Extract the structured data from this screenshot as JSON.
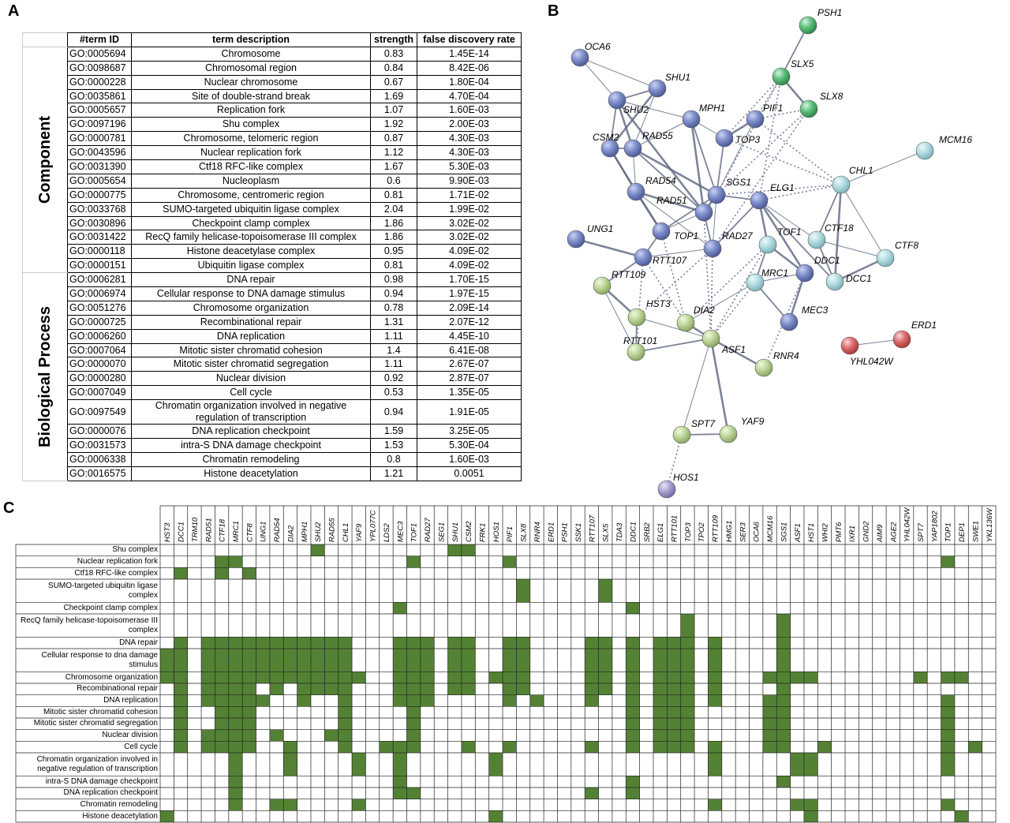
{
  "panel_a": {
    "label": "A",
    "columns": [
      "#term ID",
      "term description",
      "strength",
      "false discovery rate"
    ],
    "groups": [
      {
        "name": "Component",
        "rows": [
          [
            "GO:0005694",
            "Chromosome",
            "0.83",
            "1.45E-14"
          ],
          [
            "GO:0098687",
            "Chromosomal region",
            "0.84",
            "8.42E-06"
          ],
          [
            "GO:0000228",
            "Nuclear chromosome",
            "0.67",
            "1.80E-04"
          ],
          [
            "GO:0035861",
            "Site of double-strand break",
            "1.69",
            "4.70E-04"
          ],
          [
            "GO:0005657",
            "Replication fork",
            "1.07",
            "1.60E-03"
          ],
          [
            "GO:0097196",
            "Shu complex",
            "1.92",
            "2.00E-03"
          ],
          [
            "GO:0000781",
            "Chromosome, telomeric region",
            "0.87",
            "4.30E-03"
          ],
          [
            "GO:0043596",
            "Nuclear replication fork",
            "1.12",
            "4.30E-03"
          ],
          [
            "GO:0031390",
            "Ctf18 RFC-like complex",
            "1.67",
            "5.30E-03"
          ],
          [
            "GO:0005654",
            "Nucleoplasm",
            "0.6",
            "9.90E-03"
          ],
          [
            "GO:0000775",
            "Chromosome, centromeric region",
            "0.81",
            "1.71E-02"
          ],
          [
            "GO:0033768",
            "SUMO-targeted ubiquitin ligase complex",
            "2.04",
            "1.99E-02"
          ],
          [
            "GO:0030896",
            "Checkpoint clamp complex",
            "1.86",
            "3.02E-02"
          ],
          [
            "GO:0031422",
            "RecQ family helicase-topoisomerase III complex",
            "1.86",
            "3.02E-02"
          ],
          [
            "GO:0000118",
            "Histone deacetylase complex",
            "0.95",
            "4.09E-02"
          ],
          [
            "GO:0000151",
            "Ubiquitin ligase complex",
            "0.81",
            "4.09E-02"
          ]
        ]
      },
      {
        "name": "Biological Process",
        "rows": [
          [
            "GO:0006281",
            "DNA repair",
            "0.98",
            "1.70E-15"
          ],
          [
            "GO:0006974",
            "Cellular response to DNA damage stimulus",
            "0.94",
            "1.97E-15"
          ],
          [
            "GO:0051276",
            "Chromosome organization",
            "0.78",
            "2.09E-14"
          ],
          [
            "GO:0000725",
            "Recombinational repair",
            "1.31",
            "2.07E-12"
          ],
          [
            "GO:0006260",
            "DNA replication",
            "1.11",
            "4.45E-10"
          ],
          [
            "GO:0007064",
            "Mitotic sister chromatid cohesion",
            "1.4",
            "6.41E-08"
          ],
          [
            "GO:0000070",
            "Mitotic sister chromatid segregation",
            "1.11",
            "2.67E-07"
          ],
          [
            "GO:0000280",
            "Nuclear division",
            "0.92",
            "2.87E-07"
          ],
          [
            "GO:0007049",
            "Cell cycle",
            "0.53",
            "1.35E-05"
          ],
          [
            "GO:0097549",
            "Chromatin organization involved in negative regulation of transcription",
            "0.94",
            "1.91E-05"
          ],
          [
            "GO:0000076",
            "DNA replication checkpoint",
            "1.59",
            "3.25E-05"
          ],
          [
            "GO:0031573",
            "intra-S DNA damage checkpoint",
            "1.53",
            "5.30E-04"
          ],
          [
            "GO:0006338",
            "Chromatin remodeling",
            "0.8",
            "1.60E-03"
          ],
          [
            "GO:0016575",
            "Histone deacetylation",
            "1.21",
            "0.0051"
          ]
        ]
      }
    ]
  },
  "panel_b": {
    "label": "B",
    "nodes": [
      "OCA6",
      "SHU1",
      "SHU2",
      "MPH1",
      "PIF1",
      "CSM2",
      "RAD55",
      "TOP3",
      "RAD54",
      "SGS1",
      "ELG1",
      "RAD51",
      "UNG1",
      "TOP1",
      "RAD27",
      "RTT107",
      "DDC1",
      "MEC3",
      "MCM16",
      "CHL1",
      "TOF1",
      "CTF18",
      "CTF8",
      "MRC1",
      "DCC1",
      "PSH1",
      "SLX5",
      "SLX8",
      "RTT109",
      "HST3",
      "DIA2",
      "ASF1",
      "RTT101",
      "RNR4",
      "SPT7",
      "YAF9",
      "ERD1",
      "YHL042W",
      "HOS1"
    ]
  },
  "panel_c": {
    "label": "C",
    "genes": [
      "HST3",
      "DCC1",
      "TRM10",
      "RAD51",
      "CTF18",
      "MRC1",
      "CTF8",
      "UNG1",
      "RAD54",
      "DIA2",
      "MPH1",
      "SHU2",
      "RAD55",
      "CHL1",
      "YAF9",
      "YPL077C",
      "LDS2",
      "MEC3",
      "TOF1",
      "RAD27",
      "SEG1",
      "SHU1",
      "CSM2",
      "FRK1",
      "HOS1",
      "PIF1",
      "SLX8",
      "RNR4",
      "ERD1",
      "PSH1",
      "SSK1",
      "RTT107",
      "SLX5",
      "TDA3",
      "DDC1",
      "SRB2",
      "ELG1",
      "RTT101",
      "TOP3",
      "TPO2",
      "RTT109",
      "HMG1",
      "SER3",
      "OCA6",
      "MCM16",
      "SGS1",
      "ASF1",
      "HST1",
      "WHI2",
      "PMT6",
      "IXR1",
      "GND2",
      "AIM9",
      "AGE2",
      "YHL042W",
      "SPT7",
      "YAP1802",
      "TOP1",
      "DEP1",
      "SWE1",
      "YKL136W"
    ],
    "rows": [
      {
        "term": "Shu complex",
        "genes": [
          "SHU2",
          "SHU1",
          "CSM2"
        ]
      },
      {
        "term": "Nuclear replication fork",
        "genes": [
          "CTF18",
          "MRC1",
          "TOF1",
          "PIF1",
          "TOP1"
        ]
      },
      {
        "term": "Ctf18 RFC-like complex",
        "genes": [
          "DCC1",
          "CTF18",
          "CTF8"
        ]
      },
      {
        "term": "SUMO-targeted ubiquitin ligase complex",
        "genes": [
          "SLX8",
          "SLX5"
        ]
      },
      {
        "term": "Checkpoint clamp complex",
        "genes": [
          "MEC3",
          "DDC1"
        ]
      },
      {
        "term": "RecQ family helicase-topoisomerase III complex",
        "genes": [
          "TOP3",
          "SGS1"
        ]
      },
      {
        "term": "DNA repair",
        "genes": [
          "DCC1",
          "RAD51",
          "CTF18",
          "MRC1",
          "CTF8",
          "UNG1",
          "RAD54",
          "DIA2",
          "MPH1",
          "SHU2",
          "RAD55",
          "CHL1",
          "MEC3",
          "TOF1",
          "RAD27",
          "SHU1",
          "CSM2",
          "PIF1",
          "SLX8",
          "RTT107",
          "SLX5",
          "DDC1",
          "ELG1",
          "RTT101",
          "TOP3",
          "RTT109",
          "SGS1"
        ]
      },
      {
        "term": "Cellular response to dna damage stimulus",
        "genes": [
          "HST3",
          "DCC1",
          "RAD51",
          "CTF18",
          "MRC1",
          "CTF8",
          "UNG1",
          "RAD54",
          "DIA2",
          "MPH1",
          "SHU2",
          "RAD55",
          "CHL1",
          "MEC3",
          "TOF1",
          "RAD27",
          "SHU1",
          "CSM2",
          "PIF1",
          "SLX8",
          "RTT107",
          "SLX5",
          "DDC1",
          "ELG1",
          "RTT101",
          "TOP3",
          "RTT109",
          "SGS1"
        ]
      },
      {
        "term": "Chromosome organization",
        "genes": [
          "HST3",
          "DCC1",
          "RAD51",
          "CTF18",
          "MRC1",
          "CTF8",
          "UNG1",
          "RAD54",
          "DIA2",
          "MPH1",
          "SHU2",
          "RAD55",
          "CHL1",
          "YAF9",
          "MEC3",
          "TOF1",
          "RAD27",
          "SHU1",
          "CSM2",
          "HOS1",
          "PIF1",
          "SLX8",
          "RTT107",
          "SLX5",
          "DDC1",
          "ELG1",
          "RTT101",
          "TOP3",
          "RTT109",
          "MCM16",
          "SGS1",
          "ASF1",
          "HST1",
          "SPT7",
          "TOP1",
          "DEP1"
        ]
      },
      {
        "term": "Recombinational repair",
        "genes": [
          "DCC1",
          "RAD51",
          "CTF18",
          "MRC1",
          "CTF8",
          "RAD54",
          "MPH1",
          "SHU2",
          "RAD55",
          "CHL1",
          "MEC3",
          "TOF1",
          "RAD27",
          "SHU1",
          "CSM2",
          "PIF1",
          "SLX8",
          "RTT107",
          "SLX5",
          "DDC1",
          "ELG1",
          "RTT101",
          "TOP3",
          "RTT109",
          "SGS1"
        ]
      },
      {
        "term": "DNA replication",
        "genes": [
          "DCC1",
          "RAD51",
          "CTF18",
          "MRC1",
          "CTF8",
          "UNG1",
          "MPH1",
          "CHL1",
          "MEC3",
          "TOF1",
          "RAD27",
          "PIF1",
          "RNR4",
          "RTT107",
          "DDC1",
          "ELG1",
          "RTT101",
          "TOP3",
          "RTT109",
          "MCM16",
          "SGS1",
          "TOP1"
        ]
      },
      {
        "term": "Mitotic sister chromatid cohesion",
        "genes": [
          "DCC1",
          "CTF18",
          "MRC1",
          "CTF8",
          "CHL1",
          "TOF1",
          "DDC1",
          "ELG1",
          "RTT101",
          "TOP3",
          "MCM16",
          "SGS1",
          "TOP1"
        ]
      },
      {
        "term": "Mitotic sister chromatid segregation",
        "genes": [
          "DCC1",
          "CTF18",
          "MRC1",
          "CTF8",
          "CHL1",
          "TOF1",
          "DDC1",
          "ELG1",
          "RTT101",
          "TOP3",
          "MCM16",
          "SGS1",
          "TOP1"
        ]
      },
      {
        "term": "Nuclear division",
        "genes": [
          "DCC1",
          "RAD51",
          "CTF18",
          "MRC1",
          "CTF8",
          "RAD54",
          "RAD55",
          "CHL1",
          "TOF1",
          "DDC1",
          "ELG1",
          "RTT101",
          "TOP3",
          "MCM16",
          "SGS1",
          "TOP1"
        ]
      },
      {
        "term": "Cell cycle",
        "genes": [
          "DCC1",
          "RAD51",
          "CTF18",
          "MRC1",
          "CTF8",
          "DIA2",
          "CHL1",
          "LDS2",
          "MEC3",
          "TOF1",
          "CSM2",
          "PIF1",
          "RTT107",
          "DDC1",
          "ELG1",
          "RTT101",
          "TOP3",
          "RTT109",
          "MCM16",
          "SGS1",
          "WHI2",
          "TOP1",
          "SWE1"
        ]
      },
      {
        "term": "Chromatin organization involved in negative regulation of transcription",
        "genes": [
          "MRC1",
          "DIA2",
          "YAF9",
          "MEC3",
          "HOS1",
          "RTT109",
          "ASF1",
          "HST1",
          "TOP1"
        ]
      },
      {
        "term": "intra-S DNA damage checkpoint",
        "genes": [
          "MRC1",
          "MEC3",
          "DDC1",
          "SGS1"
        ]
      },
      {
        "term": "DNA replication checkpoint",
        "genes": [
          "MRC1",
          "MEC3",
          "TOF1",
          "RTT107",
          "DDC1"
        ]
      },
      {
        "term": "Chromatin remodeling",
        "genes": [
          "MRC1",
          "RAD54",
          "DIA2",
          "YAF9",
          "RTT109",
          "ASF1",
          "HST1",
          "TOP1"
        ]
      },
      {
        "term": "Histone deacetylation",
        "genes": [
          "HST3",
          "HOS1",
          "HST1",
          "DEP1"
        ]
      }
    ]
  }
}
